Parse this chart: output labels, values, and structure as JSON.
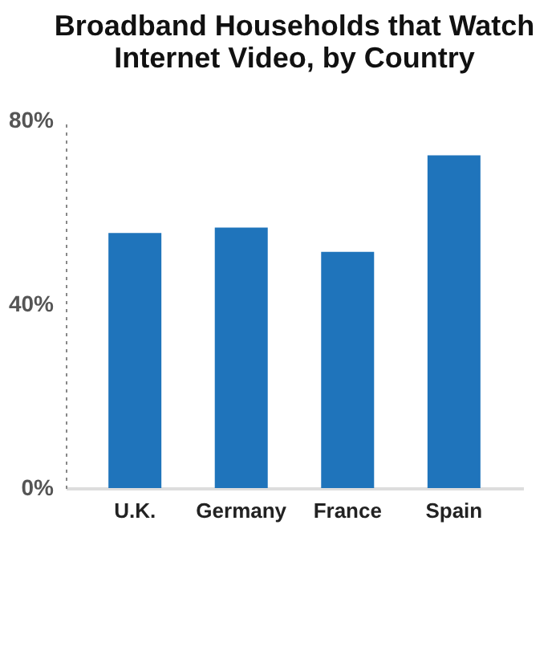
{
  "chart_data": {
    "type": "bar",
    "title": [
      "Broadband Households that Watch",
      "Internet Video, by Country"
    ],
    "categories": [
      "U.K.",
      "Germany",
      "France",
      "Spain"
    ],
    "values": [
      55.5,
      56.7,
      51.4,
      72.4
    ],
    "color": "#1f74bb",
    "ylim": [
      0,
      80
    ],
    "yticks": [
      {
        "value": 0,
        "label": "0%"
      },
      {
        "value": 40,
        "label": "40%"
      },
      {
        "value": 80,
        "label": "80%"
      }
    ],
    "grid": false
  }
}
